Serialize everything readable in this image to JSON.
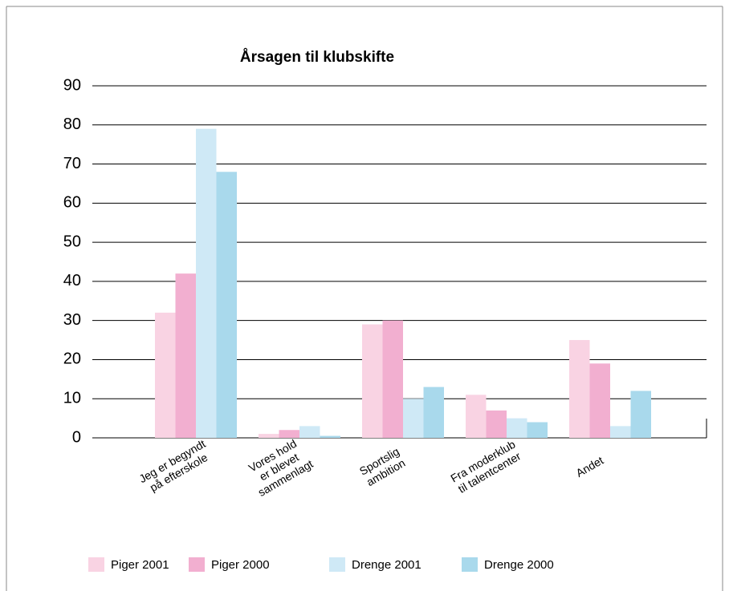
{
  "chart_data": {
    "type": "bar",
    "title": "Årsagen til klubskifte",
    "categories": [
      "Jeg er begyndt\npå efterskole",
      "Vores hold\ner blevet\nsammenlagt",
      "Sportslig\nambition",
      "Fra moderklub\ntil  talentcenter",
      "Andet"
    ],
    "series": [
      {
        "name": "Piger 2001",
        "color": "#f9d3e3",
        "values": [
          32,
          1,
          29,
          11,
          25
        ]
      },
      {
        "name": "Piger 2000",
        "color": "#f2afd0",
        "values": [
          42,
          2,
          30,
          7,
          19
        ]
      },
      {
        "name": "Drenge 2001",
        "color": "#cfe9f6",
        "values": [
          79,
          3,
          10,
          5,
          3
        ]
      },
      {
        "name": "Drenge 2000",
        "color": "#a9d9ec",
        "values": [
          68,
          0.5,
          13,
          4,
          12
        ]
      }
    ],
    "ylim": [
      0,
      90
    ],
    "yticks": [
      0,
      10,
      20,
      30,
      40,
      50,
      60,
      70,
      80,
      90
    ],
    "grid": true
  }
}
